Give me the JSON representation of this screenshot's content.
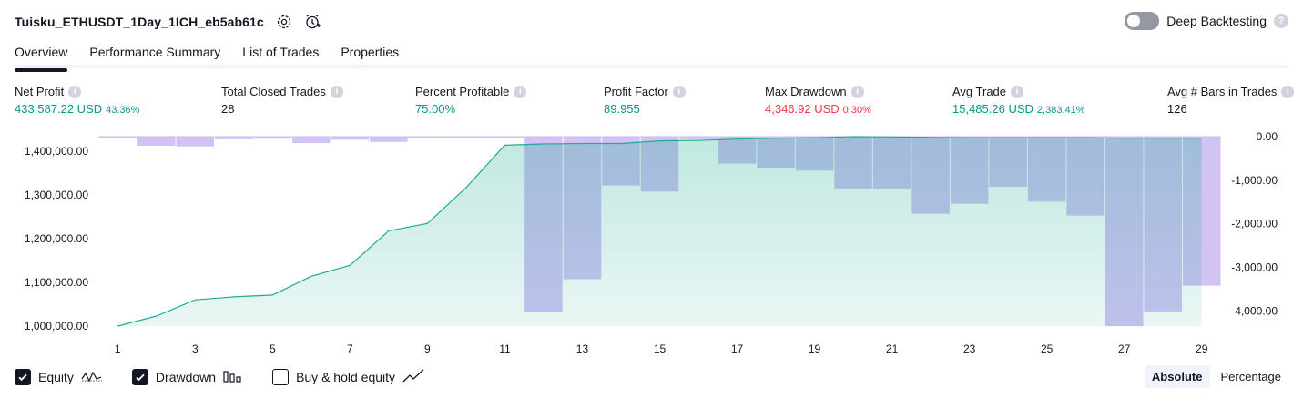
{
  "header": {
    "strategy_name": "Tuisku_ETHUSDT_1Day_1ICH_eb5ab61c",
    "deep_backtesting_label": "Deep Backtesting"
  },
  "tabs": [
    {
      "label": "Overview",
      "active": true
    },
    {
      "label": "Performance Summary",
      "active": false
    },
    {
      "label": "List of Trades",
      "active": false
    },
    {
      "label": "Properties",
      "active": false
    }
  ],
  "metrics": {
    "net_profit": {
      "label": "Net Profit",
      "value": "433,587.22 USD",
      "sub": "43.36%"
    },
    "total_closed_trades": {
      "label": "Total Closed Trades",
      "value": "28"
    },
    "percent_profitable": {
      "label": "Percent Profitable",
      "value": "75.00%"
    },
    "profit_factor": {
      "label": "Profit Factor",
      "value": "89.955"
    },
    "max_drawdown": {
      "label": "Max Drawdown",
      "value": "4,346.92 USD",
      "sub": "0.30%"
    },
    "avg_trade": {
      "label": "Avg Trade",
      "value": "15,485.26 USD",
      "sub": "2,383.41%"
    },
    "avg_bars": {
      "label": "Avg # Bars in Trades",
      "value": "126"
    }
  },
  "colors": {
    "equity_line": "#22ab94",
    "drawdown_bar": "#c9b8f2",
    "positive": "#089981",
    "negative": "#f23645"
  },
  "chart_data": {
    "type": "area",
    "x": [
      1,
      2,
      3,
      4,
      5,
      6,
      7,
      8,
      9,
      10,
      11,
      12,
      13,
      14,
      15,
      16,
      17,
      18,
      19,
      20,
      21,
      22,
      23,
      24,
      25,
      26,
      27,
      28,
      29
    ],
    "x_ticks": [
      "1",
      "3",
      "5",
      "7",
      "9",
      "11",
      "13",
      "15",
      "17",
      "19",
      "21",
      "23",
      "25",
      "27",
      "29"
    ],
    "y_ticks_left": [
      "1,400,000.00",
      "1,300,000.00",
      "1,200,000.00",
      "1,100,000.00",
      "1,000,000.00"
    ],
    "y_ticks_right": [
      "0.00",
      "-1,000.00",
      "-2,000.00",
      "-3,000.00",
      "-4,000.00"
    ],
    "ylim_left": [
      1000000,
      1433587.22
    ],
    "ylim_right": [
      -4346.92,
      0
    ],
    "series": [
      {
        "name": "Equity",
        "axis": "left",
        "values": [
          1000000,
          1023000,
          1060000,
          1067000,
          1071000,
          1114000,
          1139000,
          1218000,
          1235000,
          1317000,
          1414000,
          1417000,
          1418000,
          1418000,
          1424000,
          1425000,
          1428000,
          1430000,
          1431000,
          1433587.22,
          1433000,
          1432000,
          1431000,
          1431000,
          1431000,
          1431000,
          1430000,
          1430000,
          1430000
        ]
      },
      {
        "name": "Drawdown",
        "axis": "right",
        "values": [
          -20,
          -210,
          -225,
          -60,
          -50,
          -150,
          -70,
          -120,
          -30,
          -40,
          -40,
          -4020,
          -3270,
          -1120,
          -1260,
          -60,
          -620,
          -710,
          -780,
          -1190,
          -1190,
          -1770,
          -1540,
          -1150,
          -1490,
          -1810,
          -4350,
          -4010,
          -3420
        ]
      }
    ]
  },
  "legend": [
    {
      "label": "Equity",
      "checked": true,
      "icon": "equity-wave-icon"
    },
    {
      "label": "Drawdown",
      "checked": true,
      "icon": "bars-icon"
    },
    {
      "label": "Buy & hold equity",
      "checked": false,
      "icon": "line-up-icon"
    }
  ],
  "mode": {
    "absolute": "Absolute",
    "percentage": "Percentage"
  }
}
